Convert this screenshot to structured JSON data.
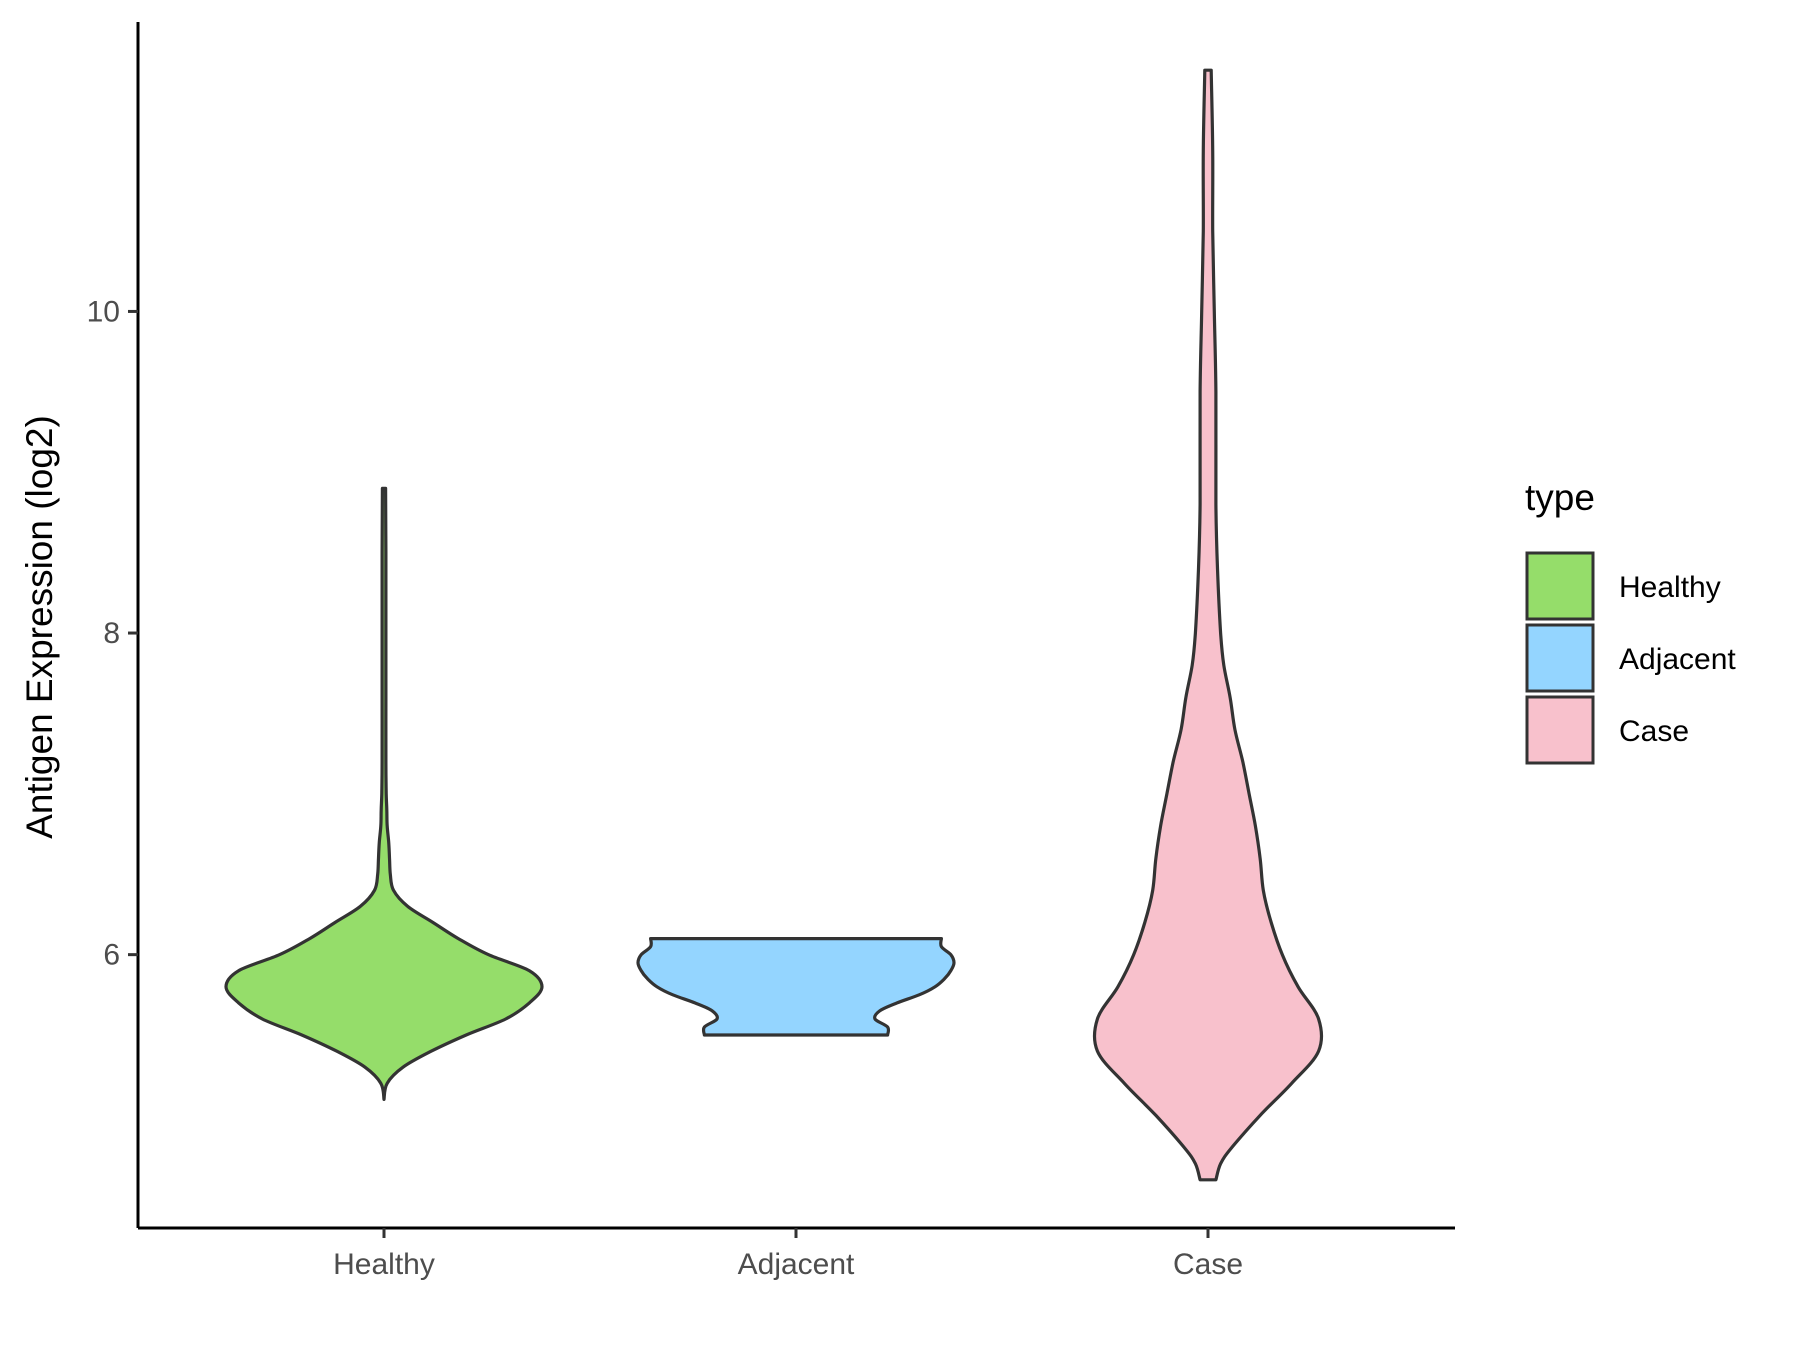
{
  "chart_data": {
    "type": "violin",
    "title": "",
    "xlabel": "",
    "ylabel": "Antigen Expression (log2)",
    "ylim": [
      4.3,
      11.8
    ],
    "yticks": [
      6,
      8,
      10
    ],
    "categories": [
      "Healthy",
      "Adjacent",
      "Case"
    ],
    "legend": {
      "title": "type",
      "position": "right",
      "entries": [
        "Healthy",
        "Adjacent",
        "Case"
      ]
    },
    "grid": false,
    "series": [
      {
        "name": "Healthy",
        "color": "#95DD6A",
        "min": 5.1,
        "max": 8.9,
        "profile": [
          [
            5.1,
            0.0
          ],
          [
            5.2,
            0.02
          ],
          [
            5.3,
            0.12
          ],
          [
            5.4,
            0.3
          ],
          [
            5.5,
            0.52
          ],
          [
            5.6,
            0.77
          ],
          [
            5.7,
            0.92
          ],
          [
            5.8,
            1.0
          ],
          [
            5.9,
            0.92
          ],
          [
            6.0,
            0.66
          ],
          [
            6.1,
            0.47
          ],
          [
            6.2,
            0.31
          ],
          [
            6.3,
            0.15
          ],
          [
            6.4,
            0.06
          ],
          [
            6.5,
            0.04
          ],
          [
            6.6,
            0.035
          ],
          [
            6.7,
            0.03
          ],
          [
            6.8,
            0.02
          ],
          [
            6.9,
            0.018
          ],
          [
            7.0,
            0.014
          ],
          [
            7.2,
            0.012
          ],
          [
            7.6,
            0.012
          ],
          [
            8.0,
            0.012
          ],
          [
            8.5,
            0.012
          ],
          [
            8.9,
            0.01
          ]
        ]
      },
      {
        "name": "Adjacent",
        "color": "#94D5FF",
        "min": 5.5,
        "max": 6.1,
        "profile": [
          [
            5.5,
            0.58
          ],
          [
            5.55,
            0.58
          ],
          [
            5.6,
            0.5
          ],
          [
            5.65,
            0.53
          ],
          [
            5.7,
            0.64
          ],
          [
            5.75,
            0.78
          ],
          [
            5.8,
            0.88
          ],
          [
            5.85,
            0.94
          ],
          [
            5.9,
            0.98
          ],
          [
            5.95,
            1.0
          ],
          [
            6.0,
            0.98
          ],
          [
            6.05,
            0.92
          ],
          [
            6.1,
            0.92
          ]
        ]
      },
      {
        "name": "Case",
        "color": "#F8C1CC",
        "min": 4.6,
        "max": 11.5,
        "profile": [
          [
            4.6,
            0.05
          ],
          [
            4.7,
            0.08
          ],
          [
            4.8,
            0.15
          ],
          [
            5.0,
            0.33
          ],
          [
            5.2,
            0.53
          ],
          [
            5.4,
            0.7
          ],
          [
            5.6,
            0.7
          ],
          [
            5.8,
            0.57
          ],
          [
            6.0,
            0.47
          ],
          [
            6.2,
            0.4
          ],
          [
            6.4,
            0.35
          ],
          [
            6.6,
            0.33
          ],
          [
            6.8,
            0.3
          ],
          [
            7.0,
            0.26
          ],
          [
            7.2,
            0.22
          ],
          [
            7.4,
            0.17
          ],
          [
            7.6,
            0.14
          ],
          [
            7.8,
            0.1
          ],
          [
            8.0,
            0.08
          ],
          [
            8.4,
            0.06
          ],
          [
            8.8,
            0.05
          ],
          [
            9.5,
            0.05
          ],
          [
            10.0,
            0.04
          ],
          [
            10.5,
            0.03
          ],
          [
            11.0,
            0.03
          ],
          [
            11.5,
            0.02
          ]
        ]
      }
    ]
  }
}
